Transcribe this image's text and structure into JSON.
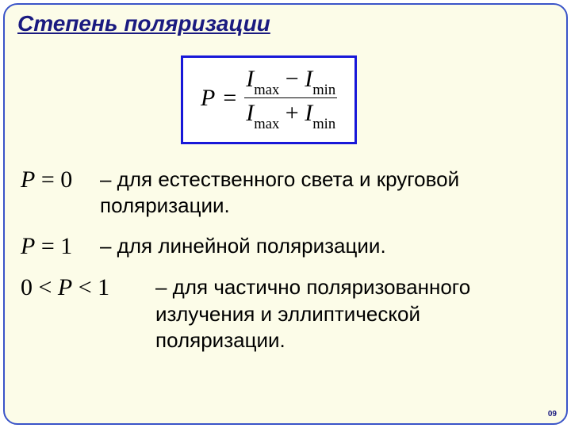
{
  "colors": {
    "slide_bg": "#fcfce8",
    "slide_border": "#3a54c8",
    "title_color": "#1a1a80",
    "formula_border": "#1818d8",
    "formula_bg": "#ffffff",
    "text_color": "#000000"
  },
  "typography": {
    "title_fontsize": 28,
    "body_fontsize": 26,
    "math_fontsize": 30,
    "math_font": "Times New Roman",
    "body_font": "Verdana"
  },
  "title": "Степень поляризации",
  "formula": {
    "lhs_var": "P",
    "equals": "=",
    "num_left_var": "I",
    "num_left_sub": "max",
    "minus": "−",
    "num_right_var": "I",
    "num_right_sub": "min",
    "den_left_var": "I",
    "den_left_sub": "max",
    "plus": "+",
    "den_right_var": "I",
    "den_right_sub": "min"
  },
  "rows": {
    "r1": {
      "var": "P",
      "eq": " = ",
      "val": "0",
      "desc": "– для естественного света и круговой поляризации."
    },
    "r2": {
      "var": "P",
      "eq": " = ",
      "val": "1",
      "desc": "– для линейной поляризации."
    },
    "r3": {
      "left": "0 < ",
      "var": "P",
      "right": " < 1",
      "desc": "– для частично поляризованного излучения и эллиптической поляризации."
    }
  },
  "slide_number": "09"
}
